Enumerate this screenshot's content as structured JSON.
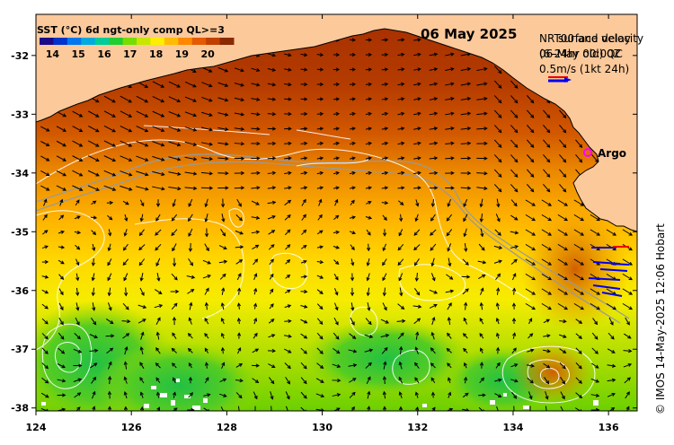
{
  "map": {
    "title": "06 May 2025",
    "legend": {
      "title": "SST (°C) 6d ngt-only comp QL>=3",
      "ticks": [
        "14",
        "15",
        "16",
        "17",
        "18",
        "19",
        "20"
      ],
      "min_value": 13.5,
      "max_value": 21,
      "colors": [
        "#1a0a8a",
        "#0033cc",
        "#0077ee",
        "#00aadd",
        "#00cc99",
        "#22cc33",
        "#77dd00",
        "#c8e600",
        "#ffee00",
        "#ffbb00",
        "#ff8800",
        "#e45a00",
        "#c04000",
        "#8a2a00"
      ]
    },
    "overlay_labels": {
      "product_line_1": "NRT00 and delay",
      "product_line_2": "06-May 00:00Z",
      "product_line_3": "surface velocity",
      "product_line_4": "(6-24hr old) QC",
      "scale_label": "0.5m/s (1kt 24h)"
    },
    "argo_label": "Argo",
    "credit": "© IMOS 14-May-2025 12:06 Hobart",
    "x_ticks": [
      124,
      126,
      128,
      130,
      132,
      134,
      136
    ],
    "y_ticks": [
      -32,
      -33,
      -34,
      -35,
      -36,
      -37,
      -38
    ],
    "lon_range": [
      124,
      136.6
    ],
    "lat_range": [
      -38.05,
      -31.3
    ],
    "colors": {
      "land": "#fcc99b",
      "coast": "#000000",
      "contour": "#ffffff",
      "isobath": "#999999",
      "argo": "#ff00ff",
      "arrow": "#000000",
      "cloud": "#ffffff"
    }
  }
}
